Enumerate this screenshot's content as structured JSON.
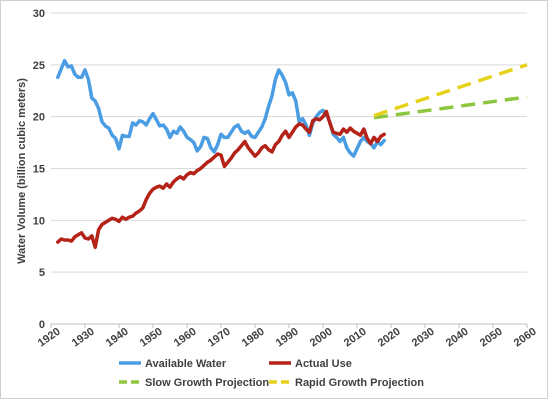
{
  "chart_data": {
    "type": "line",
    "title": "",
    "xlabel": "",
    "ylabel": "Water Volume (billion cubic meters)",
    "xlim": [
      1920,
      2060
    ],
    "ylim": [
      0,
      30
    ],
    "xticks": [
      "1920",
      "1930",
      "1940",
      "1950",
      "1960",
      "1970",
      "1980",
      "1990",
      "2000",
      "2010",
      "2020",
      "2030",
      "2040",
      "2050",
      "2060"
    ],
    "yticks": [
      "0",
      "5",
      "10",
      "15",
      "20",
      "25",
      "30"
    ],
    "grid": "horizontal",
    "legend_position": "bottom",
    "series": [
      {
        "name": "Available Water",
        "color": "#4a9de3",
        "style": "solid",
        "x": [
          1922,
          1923,
          1924,
          1925,
          1926,
          1927,
          1928,
          1929,
          1930,
          1931,
          1932,
          1933,
          1934,
          1935,
          1936,
          1937,
          1938,
          1939,
          1940,
          1941,
          1942,
          1943,
          1944,
          1945,
          1946,
          1947,
          1948,
          1949,
          1950,
          1951,
          1952,
          1953,
          1954,
          1955,
          1956,
          1957,
          1958,
          1959,
          1960,
          1961,
          1962,
          1963,
          1964,
          1965,
          1966,
          1967,
          1968,
          1969,
          1970,
          1971,
          1972,
          1973,
          1974,
          1975,
          1976,
          1977,
          1978,
          1979,
          1980,
          1981,
          1982,
          1983,
          1984,
          1985,
          1986,
          1987,
          1988,
          1989,
          1990,
          1991,
          1992,
          1993,
          1994,
          1995,
          1996,
          1997,
          1998,
          1999,
          2000,
          2001,
          2002,
          2003,
          2004,
          2005,
          2006,
          2007,
          2008,
          2009,
          2010,
          2011,
          2012,
          2013,
          2014,
          2015,
          2016,
          2017,
          2018
        ],
        "y": [
          23.8,
          24.6,
          25.4,
          24.8,
          24.9,
          24.1,
          23.8,
          23.8,
          24.5,
          23.6,
          21.8,
          21.5,
          20.8,
          19.5,
          19.1,
          18.9,
          18.2,
          17.9,
          16.9,
          18.2,
          18.1,
          18.1,
          19.4,
          19.2,
          19.6,
          19.5,
          19.2,
          19.8,
          20.3,
          19.7,
          19.1,
          19.2,
          18.8,
          18.0,
          18.6,
          18.4,
          19.0,
          18.6,
          18.0,
          17.8,
          17.5,
          16.7,
          17.1,
          18.0,
          17.9,
          17.0,
          16.6,
          17.3,
          18.3,
          18.0,
          18.0,
          18.5,
          19.0,
          19.2,
          18.6,
          18.4,
          18.6,
          18.1,
          18.0,
          18.5,
          19.0,
          19.8,
          21.0,
          22.0,
          23.6,
          24.5,
          24.0,
          23.3,
          22.1,
          22.3,
          21.5,
          19.5,
          19.8,
          19.2,
          18.2,
          19.4,
          20.0,
          20.4,
          20.6,
          20.2,
          19.5,
          18.3,
          18.0,
          17.6,
          18.0,
          17.0,
          16.5,
          16.2,
          16.9,
          17.6,
          18.0,
          17.6,
          17.4,
          17.0,
          17.6,
          17.3,
          17.7
        ]
      },
      {
        "name": "Actual Use",
        "color": "#b42218",
        "style": "solid",
        "x": [
          1922,
          1923,
          1924,
          1925,
          1926,
          1927,
          1928,
          1929,
          1930,
          1931,
          1932,
          1933,
          1934,
          1935,
          1936,
          1937,
          1938,
          1939,
          1940,
          1941,
          1942,
          1943,
          1944,
          1945,
          1946,
          1947,
          1948,
          1949,
          1950,
          1951,
          1952,
          1953,
          1954,
          1955,
          1956,
          1957,
          1958,
          1959,
          1960,
          1961,
          1962,
          1963,
          1964,
          1965,
          1966,
          1967,
          1968,
          1969,
          1970,
          1971,
          1972,
          1973,
          1974,
          1975,
          1976,
          1977,
          1978,
          1979,
          1980,
          1981,
          1982,
          1983,
          1984,
          1985,
          1986,
          1987,
          1988,
          1989,
          1990,
          1991,
          1992,
          1993,
          1994,
          1995,
          1996,
          1997,
          1998,
          1999,
          2000,
          2001,
          2002,
          2003,
          2004,
          2005,
          2006,
          2007,
          2008,
          2009,
          2010,
          2011,
          2012,
          2013,
          2014,
          2015,
          2016,
          2017,
          2018
        ],
        "y": [
          7.9,
          8.2,
          8.1,
          8.1,
          8.0,
          8.4,
          8.6,
          8.8,
          8.3,
          8.2,
          8.5,
          7.4,
          9.1,
          9.6,
          9.8,
          10.0,
          10.2,
          10.1,
          9.9,
          10.3,
          10.1,
          10.3,
          10.4,
          10.7,
          10.9,
          11.2,
          12.0,
          12.6,
          13.0,
          13.2,
          13.3,
          13.1,
          13.5,
          13.2,
          13.7,
          14.0,
          14.2,
          14.0,
          14.4,
          14.6,
          14.5,
          14.8,
          15.0,
          15.3,
          15.6,
          15.8,
          16.1,
          16.4,
          16.3,
          15.2,
          15.6,
          16.0,
          16.5,
          16.8,
          17.2,
          17.6,
          17.0,
          16.6,
          16.2,
          16.5,
          17.0,
          17.2,
          16.8,
          16.6,
          17.3,
          17.6,
          18.2,
          18.6,
          18.0,
          18.5,
          19.0,
          19.3,
          19.2,
          18.8,
          18.5,
          19.6,
          19.8,
          19.7,
          20.0,
          20.5,
          19.4,
          18.5,
          18.4,
          18.3,
          18.8,
          18.5,
          18.9,
          18.6,
          18.4,
          18.2,
          18.8,
          17.9,
          17.4,
          18.0,
          17.6,
          18.1,
          18.3
        ]
      },
      {
        "name": "Slow Growth Projection",
        "color": "#8dc63f",
        "style": "dashed",
        "x": [
          2015,
          2060
        ],
        "y": [
          19.9,
          21.9
        ]
      },
      {
        "name": "Rapid Growth Projection",
        "color": "#e6d21a",
        "style": "dashed",
        "x": [
          2015,
          2060
        ],
        "y": [
          20.1,
          25.0
        ]
      }
    ]
  }
}
